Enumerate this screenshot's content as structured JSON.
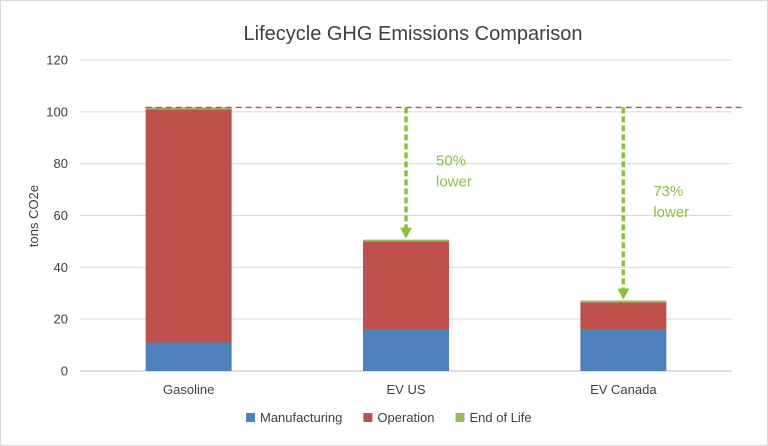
{
  "chart_data": {
    "type": "bar",
    "stacked": true,
    "title": "Lifecycle GHG Emissions Comparison",
    "xlabel": "",
    "ylabel": "tons CO2e",
    "ylim": [
      0,
      120
    ],
    "yticks": [
      0,
      20,
      40,
      60,
      80,
      100,
      120
    ],
    "grid": true,
    "legend_position": "bottom",
    "categories": [
      "Gasoline",
      "EV US",
      "EV Canada"
    ],
    "series": [
      {
        "name": "Manufacturing",
        "color": "#4f81bd",
        "values": [
          11,
          16,
          16
        ]
      },
      {
        "name": "Operation",
        "color": "#c0504d",
        "values": [
          90,
          34,
          10.5
        ]
      },
      {
        "name": "End of Life",
        "color": "#9bbb59",
        "values": [
          0.7,
          0.7,
          0.7
        ]
      }
    ],
    "reference_line": {
      "value": 101.7,
      "color": "#c0504d",
      "style": "dashed"
    },
    "annotations": [
      {
        "category": "EV US",
        "line1": "50%",
        "line2": "lower",
        "from": 101.7,
        "to": 50.7
      },
      {
        "category": "EV Canada",
        "line1": "73%",
        "line2": "lower",
        "from": 101.7,
        "to": 27.2
      }
    ],
    "annotation_color": "#8dbf3f"
  }
}
